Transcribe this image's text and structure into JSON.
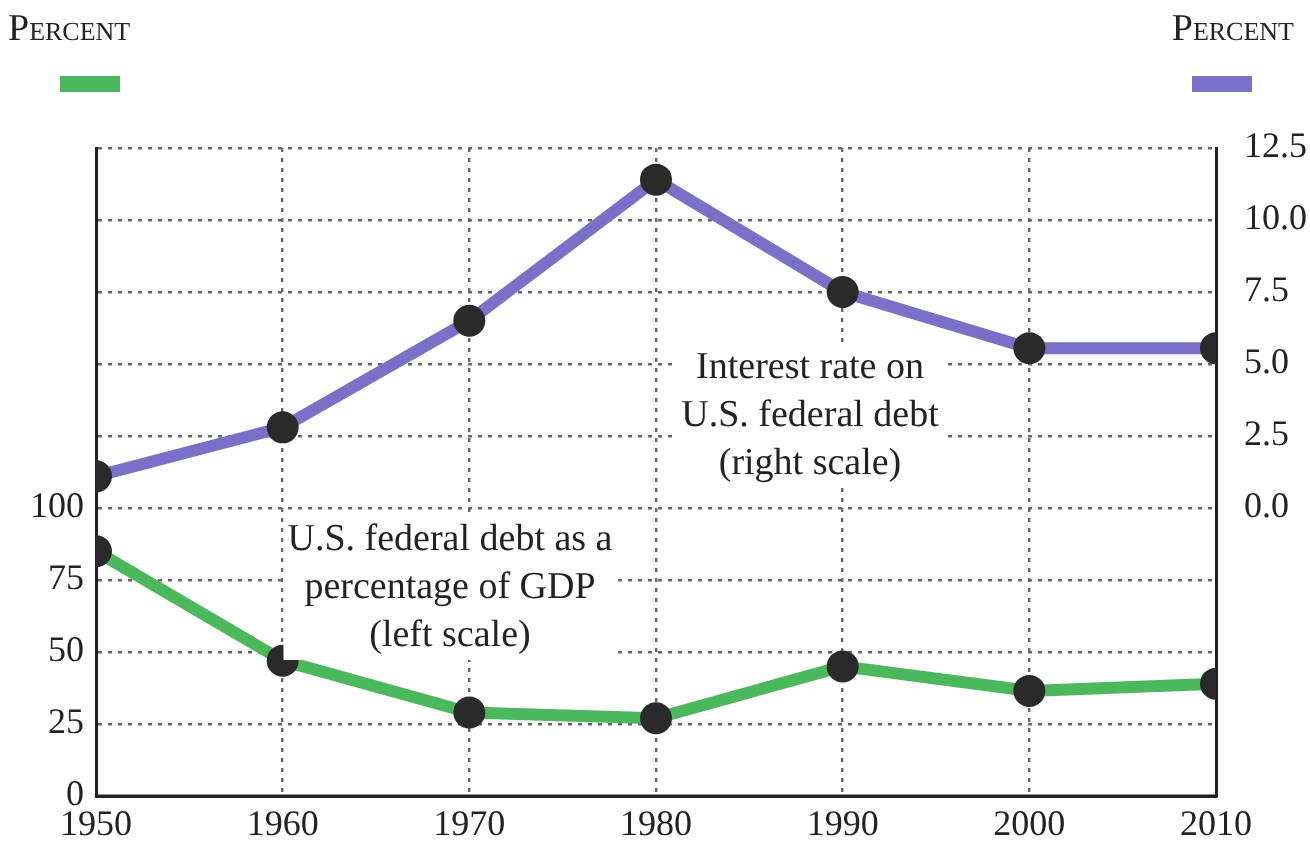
{
  "chart_data": {
    "type": "line",
    "ylabel": "Percent",
    "y2label": "Percent",
    "x": [
      1950,
      1960,
      1970,
      1980,
      1990,
      2000,
      2010
    ],
    "xlim": [
      1950,
      2010
    ],
    "xticks": [
      1950,
      1960,
      1970,
      1980,
      1990,
      2000,
      2010
    ],
    "ylim": [
      0,
      225
    ],
    "yticks": [
      0,
      25,
      50,
      75,
      100,
      {
        "value": 125,
        "label": null
      },
      {
        "value": 150,
        "label": null
      },
      {
        "value": 175,
        "label": null
      },
      {
        "value": 200,
        "label": null
      },
      {
        "value": 225,
        "label": null
      }
    ],
    "y2lim": [
      -10,
      12.5
    ],
    "y2ticks": [
      {
        "value": 0,
        "label": "0.0"
      },
      {
        "value": 2.5,
        "label": "2.5"
      },
      {
        "value": 5,
        "label": "5.0"
      },
      {
        "value": 7.5,
        "label": "7.5"
      },
      {
        "value": 10,
        "label": "10.0"
      },
      {
        "value": 12.5,
        "label": "12.5"
      }
    ],
    "series": [
      {
        "color": "#4cb85c",
        "values": [
          85,
          47,
          29,
          27,
          45,
          36.5,
          39
        ]
      },
      {
        "color": "#7b70c8",
        "axis": "y2",
        "values": [
          1.1,
          2.8,
          6.5,
          11.4,
          7.5,
          5.55,
          5.55
        ]
      }
    ],
    "annotations": [
      "Interest rate on\nU.S. federal debt\n(right scale)",
      "U.S. federal debt as a\npercentage of GDP\n(left scale)"
    ],
    "grid": true,
    "legend": false,
    "marker": "circle",
    "line_style": "solid"
  }
}
